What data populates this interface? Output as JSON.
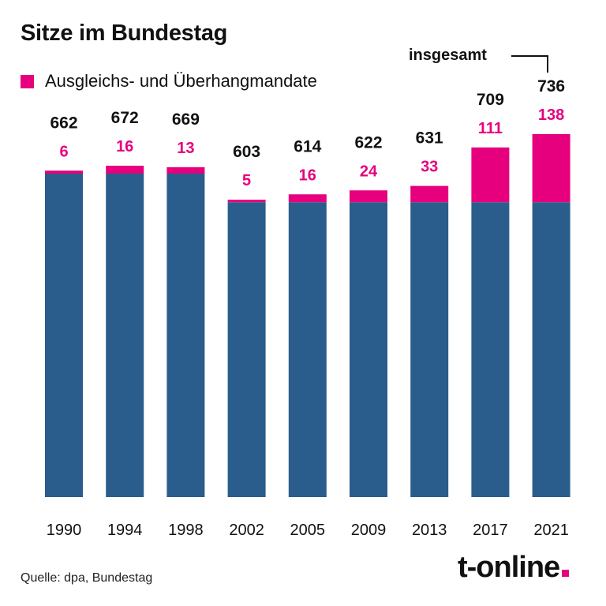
{
  "colors": {
    "base": "#2a5d8c",
    "extra": "#e6007e",
    "text": "#111111",
    "brand_dot": "#e6007e"
  },
  "chart_data": {
    "type": "bar",
    "stacked": true,
    "title": "Sitze im Bundestag",
    "legend": [
      "Ausgleichs- und Überhangmandate"
    ],
    "legend_placement": "top-left",
    "total_annotation": "insgesamt",
    "categories": [
      "1990",
      "1994",
      "1998",
      "2002",
      "2005",
      "2009",
      "2013",
      "2017",
      "2021"
    ],
    "series": [
      {
        "values": [
          656,
          656,
          656,
          598,
          598,
          598,
          598,
          598,
          598
        ]
      },
      {
        "name": "Ausgleichs- und Überhangmandate",
        "values": [
          6,
          16,
          13,
          5,
          16,
          24,
          33,
          111,
          138
        ]
      }
    ],
    "totals": [
      662,
      672,
      669,
      603,
      614,
      622,
      631,
      709,
      736
    ],
    "ylim": [
      0,
      736
    ],
    "grid": false
  },
  "footer": {
    "source": "Quelle: dpa, Bundestag",
    "brand": "t-online"
  }
}
